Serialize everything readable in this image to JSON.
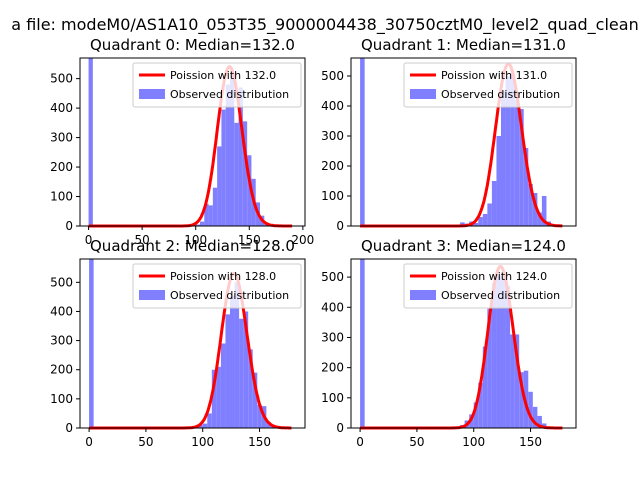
{
  "suptitle": "a file: modeM0/AS1A10_053T35_9000004438_30750cztM0_level2_quad_clean",
  "colors": {
    "hist": "#7f7fff",
    "poisson": "#ff0000",
    "axis": "#000000",
    "background": "#ffffff"
  },
  "chart_data": [
    {
      "type": "bar",
      "title": "Quadrant 0: Median=132.0",
      "legend": [
        "Poission with 132.0",
        "Observed distribution"
      ],
      "legend_position": "top-right",
      "median": 132.0,
      "xlim": [
        -8,
        202
      ],
      "ylim": [
        0,
        570
      ],
      "xticks": [
        0,
        50,
        100,
        150,
        200
      ],
      "yticks": [
        0,
        100,
        200,
        300,
        400,
        500
      ],
      "observed_bins": [
        {
          "x": 0,
          "y": 570
        },
        {
          "x": 96,
          "y": 3
        },
        {
          "x": 100,
          "y": 5
        },
        {
          "x": 104,
          "y": 15
        },
        {
          "x": 108,
          "y": 75
        },
        {
          "x": 112,
          "y": 70
        },
        {
          "x": 116,
          "y": 130
        },
        {
          "x": 120,
          "y": 270
        },
        {
          "x": 124,
          "y": 395
        },
        {
          "x": 128,
          "y": 480
        },
        {
          "x": 132,
          "y": 510
        },
        {
          "x": 136,
          "y": 350
        },
        {
          "x": 140,
          "y": 470
        },
        {
          "x": 144,
          "y": 355
        },
        {
          "x": 148,
          "y": 240
        },
        {
          "x": 152,
          "y": 160
        },
        {
          "x": 156,
          "y": 80
        },
        {
          "x": 160,
          "y": 35
        },
        {
          "x": 164,
          "y": 12
        },
        {
          "x": 168,
          "y": 4
        }
      ],
      "bin_width": 4
    },
    {
      "type": "bar",
      "title": "Quadrant 1: Median=131.0",
      "legend": [
        "Poission with 131.0",
        "Observed distribution"
      ],
      "legend_position": "top-right",
      "median": 131.0,
      "xlim": [
        -8,
        190
      ],
      "ylim": [
        0,
        560
      ],
      "xticks": [],
      "yticks": [
        0,
        100,
        200,
        300,
        400,
        500
      ],
      "observed_bins": [
        {
          "x": 0,
          "y": 560
        },
        {
          "x": 76,
          "y": 5
        },
        {
          "x": 80,
          "y": 3
        },
        {
          "x": 88,
          "y": 12
        },
        {
          "x": 92,
          "y": 8
        },
        {
          "x": 96,
          "y": 15
        },
        {
          "x": 100,
          "y": 10
        },
        {
          "x": 104,
          "y": 30
        },
        {
          "x": 108,
          "y": 40
        },
        {
          "x": 112,
          "y": 75
        },
        {
          "x": 116,
          "y": 150
        },
        {
          "x": 120,
          "y": 300
        },
        {
          "x": 124,
          "y": 450
        },
        {
          "x": 128,
          "y": 500
        },
        {
          "x": 132,
          "y": 510
        },
        {
          "x": 136,
          "y": 420
        },
        {
          "x": 140,
          "y": 390
        },
        {
          "x": 144,
          "y": 260
        },
        {
          "x": 148,
          "y": 140
        },
        {
          "x": 152,
          "y": 110
        },
        {
          "x": 156,
          "y": 45
        },
        {
          "x": 160,
          "y": 100
        },
        {
          "x": 164,
          "y": 15
        },
        {
          "x": 168,
          "y": 5
        }
      ],
      "bin_width": 4
    },
    {
      "type": "bar",
      "title": "Quadrant 2: Median=128.0",
      "legend": [
        "Poission with 128.0",
        "Observed distribution"
      ],
      "legend_position": "top-right",
      "median": 128.0,
      "xlim": [
        -8,
        190
      ],
      "ylim": [
        0,
        580
      ],
      "xticks": [
        0,
        50,
        100,
        150
      ],
      "yticks": [
        0,
        100,
        200,
        300,
        400,
        500
      ],
      "observed_bins": [
        {
          "x": 0,
          "y": 580
        },
        {
          "x": 80,
          "y": 3
        },
        {
          "x": 92,
          "y": 5
        },
        {
          "x": 96,
          "y": 10
        },
        {
          "x": 100,
          "y": 15
        },
        {
          "x": 104,
          "y": 50
        },
        {
          "x": 108,
          "y": 200
        },
        {
          "x": 112,
          "y": 210
        },
        {
          "x": 116,
          "y": 290
        },
        {
          "x": 120,
          "y": 390
        },
        {
          "x": 124,
          "y": 455
        },
        {
          "x": 128,
          "y": 500
        },
        {
          "x": 132,
          "y": 375
        },
        {
          "x": 136,
          "y": 400
        },
        {
          "x": 140,
          "y": 270
        },
        {
          "x": 144,
          "y": 190
        },
        {
          "x": 148,
          "y": 80
        },
        {
          "x": 152,
          "y": 75
        },
        {
          "x": 156,
          "y": 20
        },
        {
          "x": 160,
          "y": 8
        }
      ],
      "bin_width": 4
    },
    {
      "type": "bar",
      "title": "Quadrant 3: Median=124.0",
      "legend": [
        "Poission with 124.0",
        "Observed distribution"
      ],
      "legend_position": "top-right",
      "median": 124.0,
      "xlim": [
        -8,
        190
      ],
      "ylim": [
        0,
        560
      ],
      "xticks": [
        0,
        50,
        100,
        150
      ],
      "yticks": [
        0,
        100,
        200,
        300,
        400,
        500
      ],
      "observed_bins": [
        {
          "x": 0,
          "y": 560
        },
        {
          "x": 72,
          "y": 3
        },
        {
          "x": 80,
          "y": 5
        },
        {
          "x": 88,
          "y": 10
        },
        {
          "x": 92,
          "y": 25
        },
        {
          "x": 96,
          "y": 45
        },
        {
          "x": 100,
          "y": 85
        },
        {
          "x": 104,
          "y": 150
        },
        {
          "x": 108,
          "y": 270
        },
        {
          "x": 112,
          "y": 395
        },
        {
          "x": 116,
          "y": 480
        },
        {
          "x": 120,
          "y": 505
        },
        {
          "x": 124,
          "y": 500
        },
        {
          "x": 128,
          "y": 470
        },
        {
          "x": 132,
          "y": 310
        },
        {
          "x": 136,
          "y": 310
        },
        {
          "x": 140,
          "y": 185
        },
        {
          "x": 144,
          "y": 190
        },
        {
          "x": 148,
          "y": 120
        },
        {
          "x": 152,
          "y": 70
        },
        {
          "x": 156,
          "y": 40
        },
        {
          "x": 160,
          "y": 15
        },
        {
          "x": 164,
          "y": 5
        }
      ],
      "bin_width": 4
    }
  ]
}
